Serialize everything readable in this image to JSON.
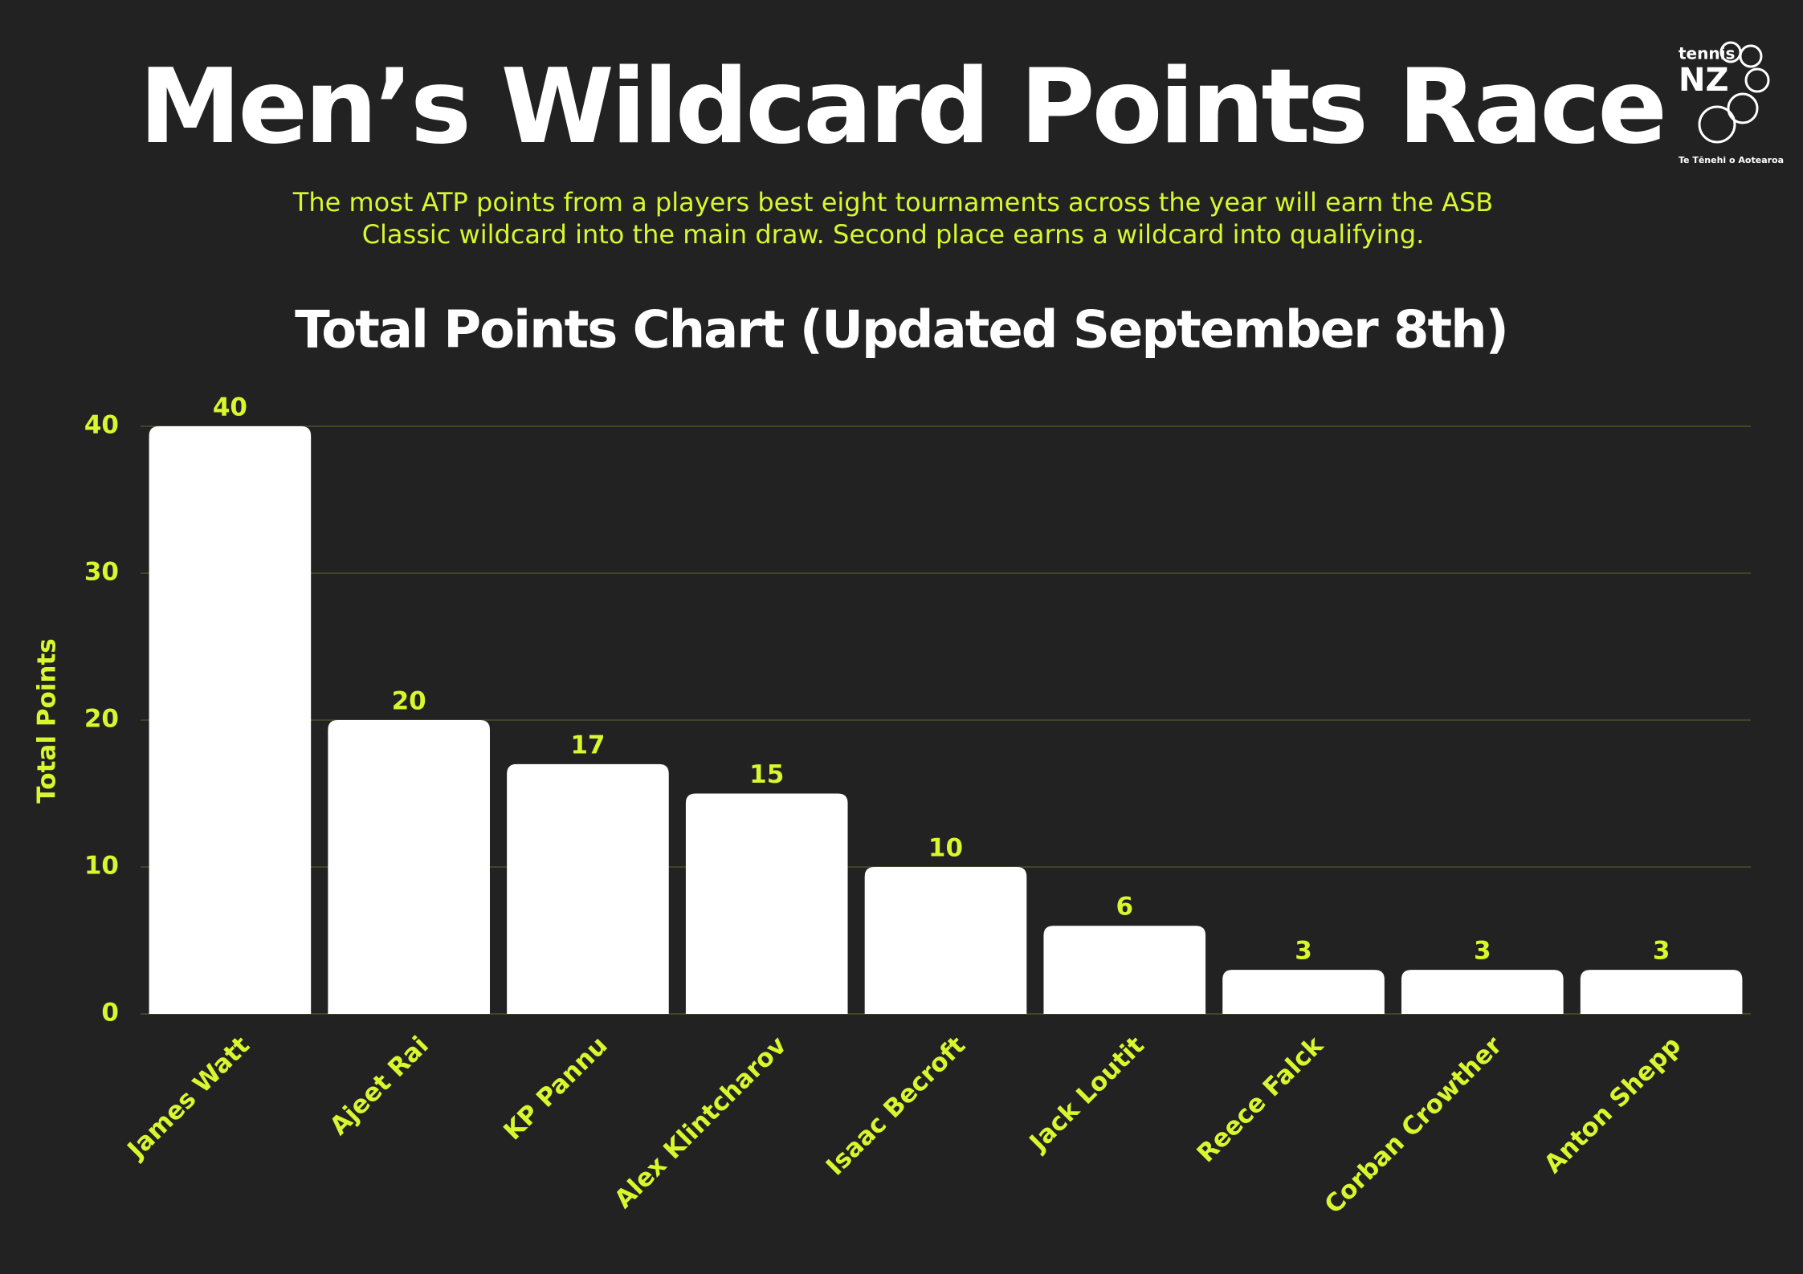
{
  "header": {
    "title": "Men’s Wildcard Points Race",
    "subtitle": "The most ATP points from a players best eight tournaments across the year will earn the ASB Classic wildcard into the main draw. Second place earns a wildcard into qualifying."
  },
  "logo": {
    "top": "tennis",
    "brand": "NZ",
    "tagline": "Te Tēnehi o Aotearoa"
  },
  "chart_data": {
    "type": "bar",
    "title": "Total Points Chart (Updated September 8th)",
    "y_label": "Total Points",
    "categories": [
      "James Watt",
      "Ajeet Rai",
      "KP Pannu",
      "Alex Klintcharov",
      "Isaac Becroft",
      "Jack Loutit",
      "Reece Falck",
      "Corban Crowther",
      "Anton Shepp"
    ],
    "values": [
      40,
      20,
      17,
      15,
      10,
      6,
      3,
      3,
      3
    ],
    "color": "#ffffff",
    "ylim": [
      0,
      40
    ],
    "yticks": [
      0,
      10,
      20,
      30,
      40
    ],
    "grid": true
  }
}
